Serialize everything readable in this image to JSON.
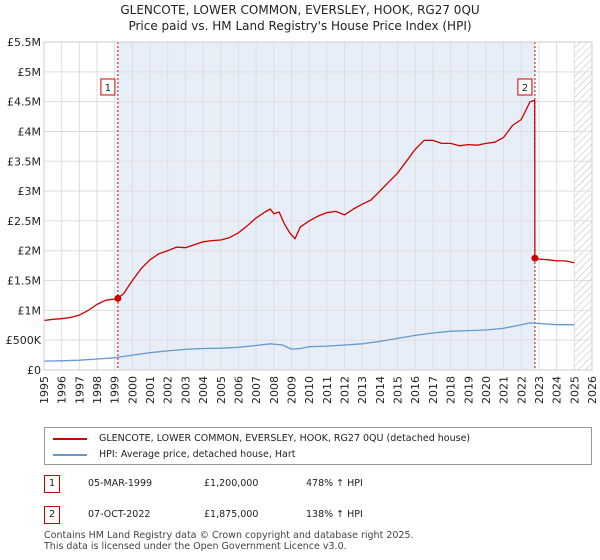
{
  "chart_data": {
    "type": "line",
    "title_lines": [
      "GLENCOTE, LOWER COMMON, EVERSLEY, HOOK, RG27 0QU",
      "Price paid vs. HM Land Registry's House Price Index (HPI)"
    ],
    "xlim": [
      1995,
      2026
    ],
    "ylim": [
      0,
      5500000
    ],
    "x_ticks": [
      1995,
      1996,
      1997,
      1998,
      1999,
      2000,
      2001,
      2002,
      2003,
      2004,
      2005,
      2006,
      2007,
      2008,
      2009,
      2010,
      2011,
      2012,
      2013,
      2014,
      2015,
      2016,
      2017,
      2018,
      2019,
      2020,
      2021,
      2022,
      2023,
      2024,
      2025,
      2026
    ],
    "y_ticks": [
      {
        "value": 0,
        "label": "£0"
      },
      {
        "value": 500000,
        "label": "£500K"
      },
      {
        "value": 1000000,
        "label": "£1M"
      },
      {
        "value": 1500000,
        "label": "£1.5M"
      },
      {
        "value": 2000000,
        "label": "£2M"
      },
      {
        "value": 2500000,
        "label": "£2.5M"
      },
      {
        "value": 3000000,
        "label": "£3M"
      },
      {
        "value": 3500000,
        "label": "£3.5M"
      },
      {
        "value": 4000000,
        "label": "£4M"
      },
      {
        "value": 4500000,
        "label": "£4.5M"
      },
      {
        "value": 5000000,
        "label": "£5M"
      },
      {
        "value": 5500000,
        "label": "£5.5M"
      }
    ],
    "shaded_region": {
      "from": 1999.18,
      "to": 2022.77
    },
    "hatched_region": {
      "from": 2025.0,
      "to": 2026
    },
    "series": [
      {
        "name": "GLENCOTE, LOWER COMMON, EVERSLEY, HOOK, RG27 0QU (detached house)",
        "color": "#cc0000",
        "x": [
          1995.0,
          1995.5,
          1996.0,
          1996.5,
          1997.0,
          1997.5,
          1998.0,
          1998.5,
          1999.0,
          1999.18,
          1999.5,
          2000.0,
          2000.5,
          2001.0,
          2001.5,
          2002.0,
          2002.5,
          2003.0,
          2003.5,
          2004.0,
          2004.5,
          2005.0,
          2005.5,
          2006.0,
          2006.5,
          2007.0,
          2007.5,
          2007.8,
          2008.0,
          2008.3,
          2008.6,
          2008.9,
          2009.2,
          2009.5,
          2010.0,
          2010.5,
          2011.0,
          2011.5,
          2012.0,
          2012.5,
          2013.0,
          2013.5,
          2014.0,
          2014.5,
          2015.0,
          2015.5,
          2016.0,
          2016.5,
          2017.0,
          2017.5,
          2018.0,
          2018.5,
          2019.0,
          2019.5,
          2020.0,
          2020.5,
          2021.0,
          2021.5,
          2022.0,
          2022.5,
          2022.76,
          2022.77,
          2023.0,
          2023.5,
          2024.0,
          2024.5,
          2025.0
        ],
        "y": [
          830000,
          850000,
          860000,
          880000,
          920000,
          1000000,
          1100000,
          1170000,
          1190000,
          1200000,
          1280000,
          1500000,
          1700000,
          1850000,
          1950000,
          2000000,
          2060000,
          2050000,
          2100000,
          2150000,
          2170000,
          2180000,
          2220000,
          2300000,
          2420000,
          2550000,
          2650000,
          2700000,
          2620000,
          2650000,
          2450000,
          2300000,
          2200000,
          2400000,
          2500000,
          2580000,
          2640000,
          2660000,
          2600000,
          2700000,
          2780000,
          2850000,
          3000000,
          3150000,
          3300000,
          3500000,
          3700000,
          3850000,
          3850000,
          3800000,
          3800000,
          3760000,
          3780000,
          3770000,
          3800000,
          3820000,
          3900000,
          4100000,
          4200000,
          4500000,
          4520000,
          1875000,
          1860000,
          1850000,
          1830000,
          1830000,
          1800000
        ]
      },
      {
        "name": "HPI: Average price, detached house, Hart",
        "color": "#6699cc",
        "x": [
          1995.0,
          1996.0,
          1997.0,
          1998.0,
          1999.0,
          2000.0,
          2001.0,
          2002.0,
          2003.0,
          2004.0,
          2005.0,
          2006.0,
          2007.0,
          2007.8,
          2008.5,
          2009.0,
          2009.5,
          2010.0,
          2011.0,
          2012.0,
          2013.0,
          2014.0,
          2015.0,
          2016.0,
          2017.0,
          2018.0,
          2019.0,
          2020.0,
          2021.0,
          2022.0,
          2022.5,
          2023.0,
          2024.0,
          2025.0
        ],
        "y": [
          150000,
          155000,
          165000,
          185000,
          205000,
          250000,
          290000,
          320000,
          345000,
          360000,
          365000,
          380000,
          410000,
          440000,
          420000,
          350000,
          360000,
          390000,
          400000,
          420000,
          440000,
          480000,
          530000,
          580000,
          620000,
          650000,
          660000,
          670000,
          700000,
          760000,
          790000,
          780000,
          760000,
          760000
        ]
      }
    ],
    "sales": [
      {
        "label": "1",
        "x": 1999.18,
        "y": 1200000,
        "date": "05-MAR-1999",
        "price": "£1,200,000",
        "hpi": "478% ↑ HPI"
      },
      {
        "label": "2",
        "x": 2022.77,
        "y": 1875000,
        "date": "07-OCT-2022",
        "price": "£1,875,000",
        "hpi": "138% ↑ HPI"
      }
    ],
    "legend": {
      "entries": [
        "GLENCOTE, LOWER COMMON, EVERSLEY, HOOK, RG27 0QU (detached house)",
        "HPI: Average price, detached house, Hart"
      ]
    },
    "footer": [
      "Contains HM Land Registry data © Crown copyright and database right 2025.",
      "This data is licensed under the Open Government Licence v3.0."
    ],
    "colors": {
      "red": "#cc0000",
      "blue": "#6699cc",
      "shade": "#e8eef8",
      "grid": "#dddddd"
    }
  }
}
